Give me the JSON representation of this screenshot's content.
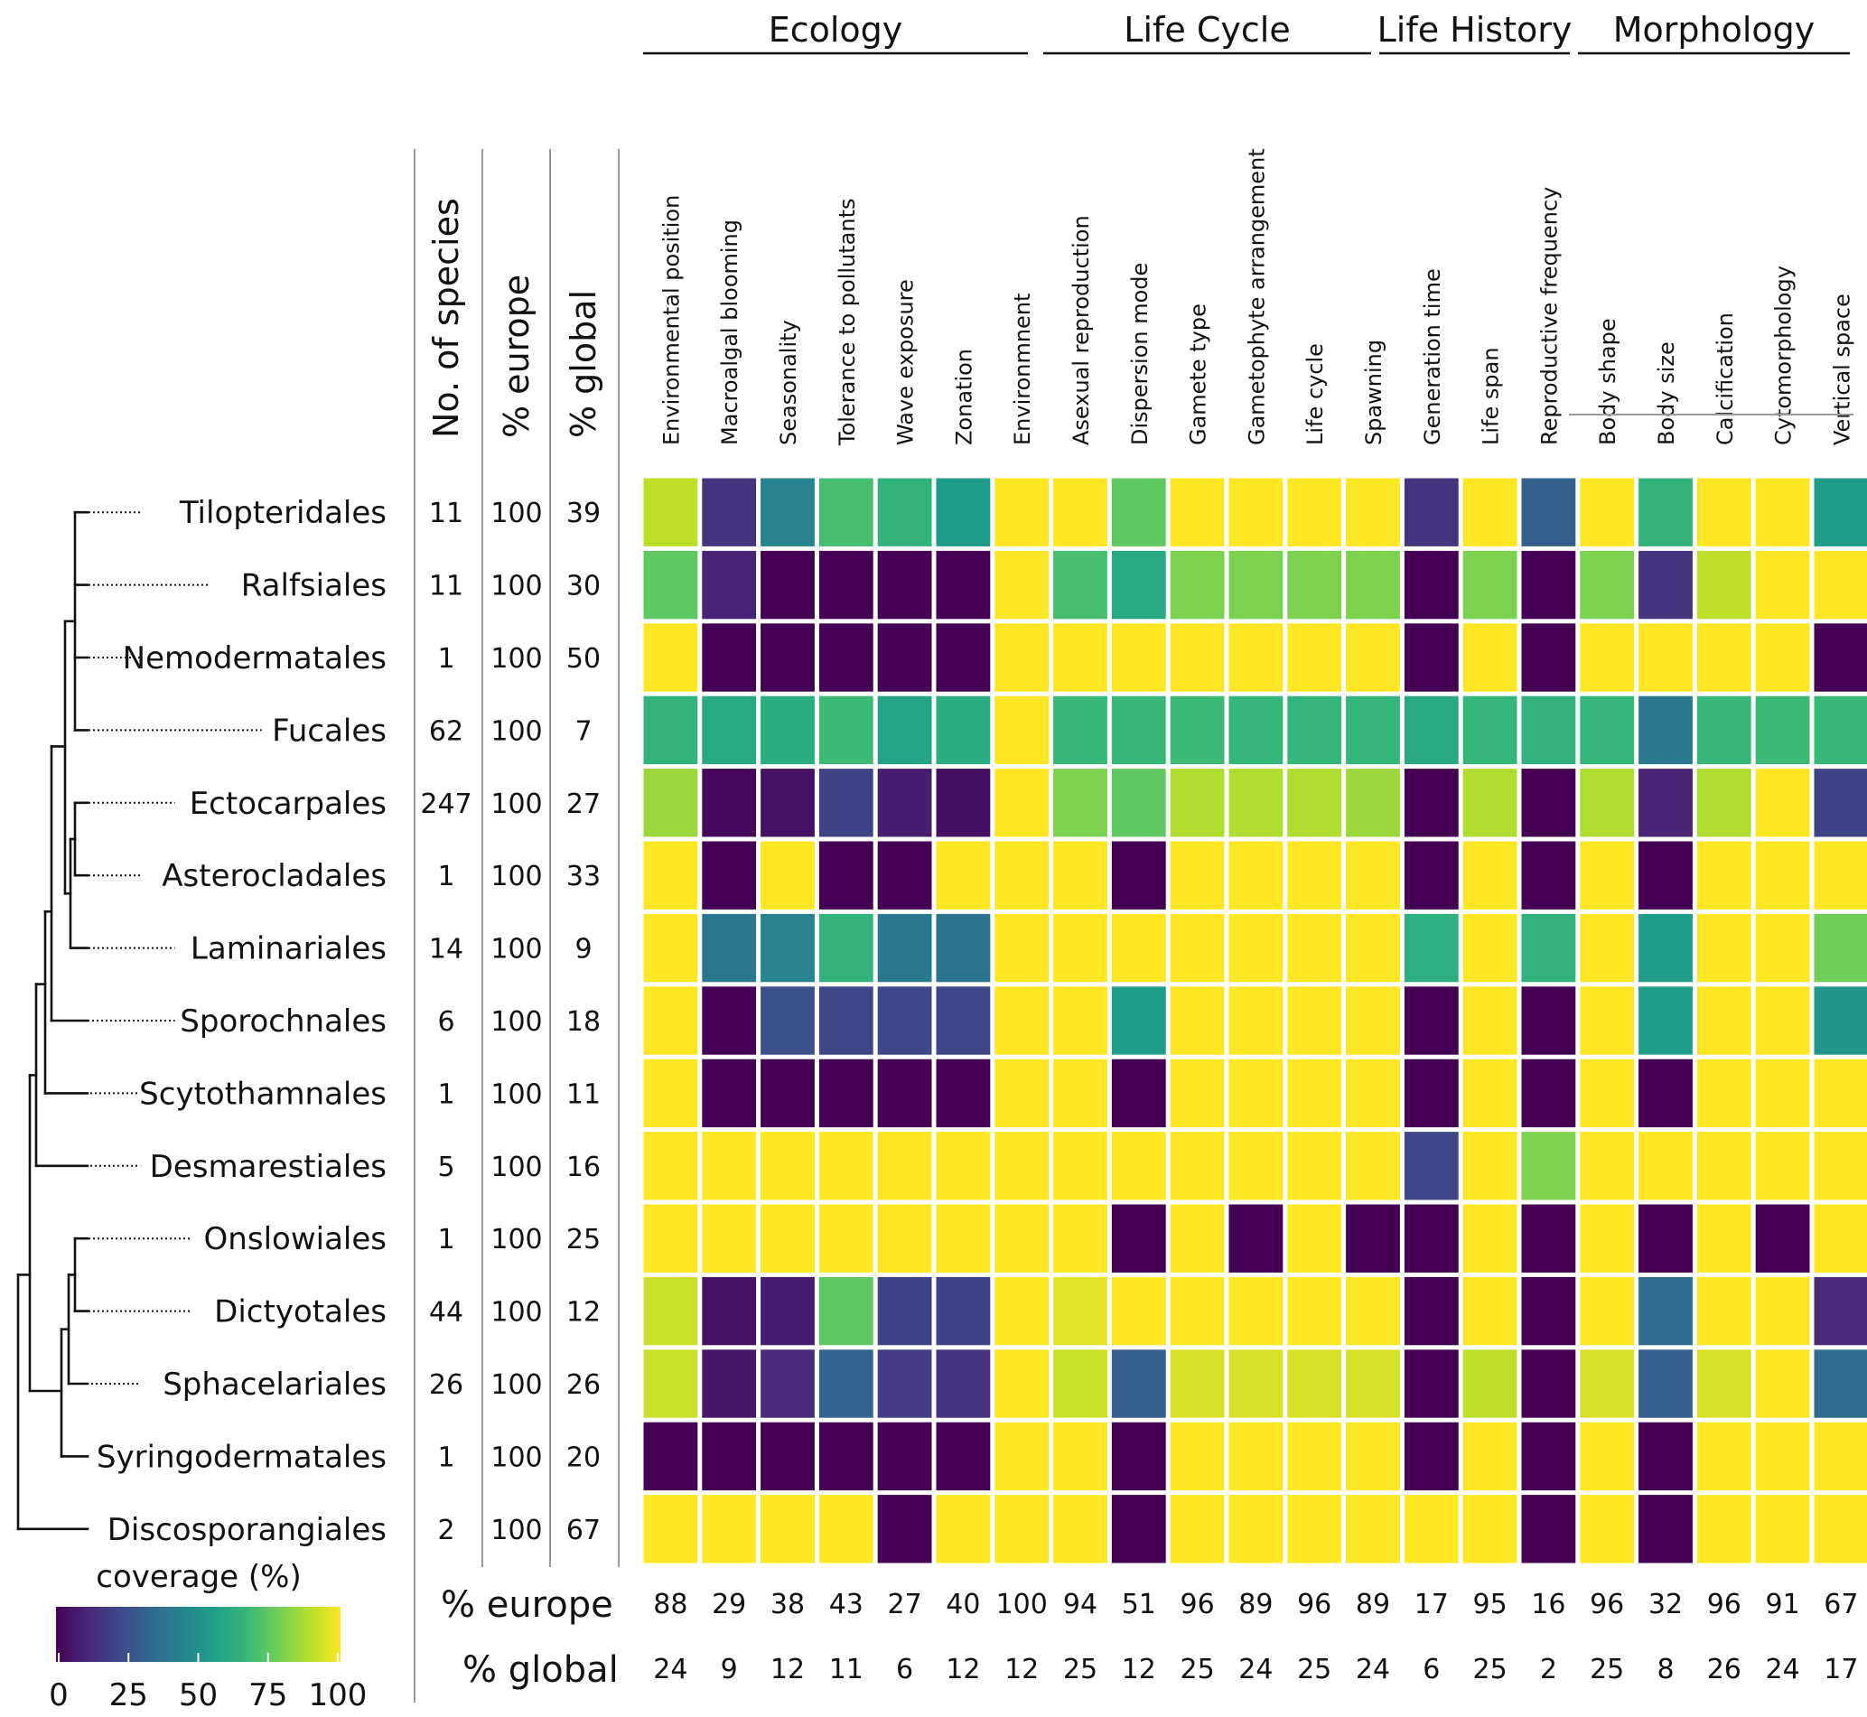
{
  "chart_data": {
    "type": "heatmap",
    "value_label": "coverage (%)",
    "color_scale": "viridis",
    "color_stops": [
      "#440154",
      "#482878",
      "#3e4989",
      "#31688e",
      "#26828e",
      "#1f9e89",
      "#35b779",
      "#6ece58",
      "#b5de2b",
      "#fde725"
    ],
    "range": [
      0,
      100
    ],
    "legend": {
      "title": "coverage (%)",
      "ticks": [
        0,
        25,
        50,
        75,
        100
      ],
      "tick_labels": [
        "0",
        "25",
        "50",
        "75",
        "100"
      ]
    },
    "groups": [
      {
        "name": "Ecology",
        "columns": [
          "Environmental position",
          "Macroalgal blooming",
          "Seasonality",
          "Tolerance to pollutants",
          "Wave exposure",
          "Zonation",
          "Environmnent"
        ]
      },
      {
        "name": "Life Cycle",
        "columns": [
          "Asexual reproduction",
          "Dispersion mode",
          "Gamete type",
          "Gametophyte arrangement",
          "Life cycle",
          "Spawning"
        ]
      },
      {
        "name": "Life History",
        "columns": [
          "Generation time",
          "Life span",
          "Reproductive frequency"
        ]
      },
      {
        "name": "Morphology",
        "columns": [
          "Body shape",
          "Body size",
          "Calcification",
          "Cytomorphology",
          "Vertical space"
        ]
      }
    ],
    "traits": [
      "Environmental position",
      "Macroalgal blooming",
      "Seasonality",
      "Tolerance to pollutants",
      "Wave exposure",
      "Zonation",
      "Environmnent",
      "Asexual reproduction",
      "Dispersion mode",
      "Gamete type",
      "Gametophyte arrangement",
      "Life cycle",
      "Spawning",
      "Generation time",
      "Life span",
      "Reproductive frequency",
      "Body shape",
      "Body size",
      "Calcification",
      "Cytomorphology",
      "Vertical space"
    ],
    "summary_headers": [
      "No. of species",
      "% europe",
      "% global"
    ],
    "orders": [
      {
        "name": "Tilopteridales",
        "species": "11",
        "europe": "100",
        "global": "39",
        "values": [
          90,
          15,
          45,
          70,
          65,
          55,
          100,
          100,
          75,
          100,
          100,
          100,
          100,
          15,
          100,
          30,
          100,
          65,
          100,
          100,
          55
        ]
      },
      {
        "name": "Ralfsiales",
        "species": "11",
        "europe": "100",
        "global": "30",
        "values": [
          75,
          10,
          0,
          0,
          0,
          0,
          100,
          70,
          60,
          80,
          80,
          80,
          80,
          0,
          80,
          0,
          80,
          15,
          90,
          100,
          100
        ]
      },
      {
        "name": "Nemodermatales",
        "species": "1",
        "europe": "100",
        "global": "50",
        "values": [
          100,
          0,
          0,
          0,
          0,
          0,
          100,
          100,
          100,
          100,
          100,
          100,
          100,
          0,
          100,
          0,
          100,
          100,
          100,
          100,
          0
        ]
      },
      {
        "name": "Fucales",
        "species": "62",
        "europe": "100",
        "global": "7",
        "values": [
          65,
          60,
          62,
          68,
          58,
          62,
          100,
          67,
          67,
          68,
          66,
          66,
          66,
          60,
          66,
          64,
          66,
          40,
          67,
          68,
          67
        ]
      },
      {
        "name": "Ectocarpales",
        "species": "247",
        "europe": "100",
        "global": "27",
        "values": [
          85,
          2,
          5,
          20,
          8,
          4,
          100,
          80,
          75,
          88,
          88,
          88,
          85,
          0,
          88,
          0,
          88,
          10,
          88,
          100,
          20
        ]
      },
      {
        "name": "Asterocladales",
        "species": "1",
        "europe": "100",
        "global": "33",
        "values": [
          100,
          0,
          100,
          0,
          0,
          100,
          100,
          100,
          0,
          100,
          100,
          100,
          100,
          0,
          100,
          0,
          100,
          0,
          100,
          100,
          100
        ]
      },
      {
        "name": "Laminariales",
        "species": "14",
        "europe": "100",
        "global": "9",
        "values": [
          100,
          40,
          45,
          65,
          40,
          38,
          100,
          100,
          100,
          100,
          100,
          100,
          100,
          63,
          100,
          64,
          100,
          55,
          100,
          100,
          78
        ]
      },
      {
        "name": "Sporochnales",
        "species": "6",
        "europe": "100",
        "global": "18",
        "values": [
          100,
          0,
          25,
          22,
          22,
          22,
          100,
          100,
          55,
          100,
          100,
          100,
          100,
          0,
          100,
          0,
          100,
          55,
          100,
          100,
          52
        ]
      },
      {
        "name": "Scytothamnales",
        "species": "1",
        "europe": "100",
        "global": "11",
        "values": [
          100,
          0,
          0,
          0,
          0,
          0,
          100,
          100,
          0,
          100,
          100,
          100,
          100,
          0,
          100,
          0,
          100,
          0,
          100,
          100,
          100
        ]
      },
      {
        "name": "Desmarestiales",
        "species": "5",
        "europe": "100",
        "global": "16",
        "values": [
          100,
          100,
          100,
          100,
          100,
          100,
          100,
          100,
          100,
          100,
          100,
          100,
          100,
          22,
          100,
          80,
          100,
          100,
          100,
          100,
          100
        ]
      },
      {
        "name": "Onslowiales",
        "species": "1",
        "europe": "100",
        "global": "25",
        "values": [
          100,
          100,
          100,
          100,
          100,
          100,
          100,
          100,
          0,
          100,
          0,
          100,
          0,
          0,
          100,
          0,
          100,
          0,
          100,
          0,
          100
        ]
      },
      {
        "name": "Dictyotales",
        "species": "44",
        "europe": "100",
        "global": "12",
        "values": [
          92,
          5,
          8,
          75,
          20,
          20,
          100,
          96,
          100,
          100,
          100,
          100,
          100,
          0,
          100,
          0,
          100,
          35,
          100,
          100,
          12
        ]
      },
      {
        "name": "Sphacelariales",
        "species": "26",
        "europe": "100",
        "global": "26",
        "values": [
          92,
          6,
          12,
          32,
          18,
          15,
          100,
          92,
          30,
          94,
          94,
          94,
          94,
          0,
          90,
          0,
          94,
          30,
          94,
          100,
          35
        ]
      },
      {
        "name": "Syringodermatales",
        "species": "1",
        "europe": "100",
        "global": "20",
        "values": [
          0,
          0,
          0,
          0,
          0,
          0,
          100,
          100,
          0,
          100,
          100,
          100,
          100,
          0,
          100,
          0,
          100,
          0,
          100,
          100,
          100
        ]
      },
      {
        "name": "Discosporangiales",
        "species": "2",
        "europe": "100",
        "global": "67",
        "values": [
          100,
          100,
          100,
          100,
          0,
          100,
          100,
          100,
          0,
          100,
          100,
          100,
          100,
          100,
          100,
          0,
          100,
          0,
          100,
          100,
          100
        ]
      }
    ],
    "footer": {
      "europe_label": "% europe",
      "global_label": "% global",
      "europe": [
        "88",
        "29",
        "38",
        "43",
        "27",
        "40",
        "100",
        "94",
        "51",
        "96",
        "89",
        "96",
        "89",
        "17",
        "95",
        "16",
        "96",
        "32",
        "96",
        "91",
        "67"
      ],
      "global": [
        "24",
        "9",
        "12",
        "11",
        "6",
        "12",
        "12",
        "25",
        "12",
        "25",
        "24",
        "25",
        "24",
        "6",
        "25",
        "2",
        "25",
        "8",
        "26",
        "24",
        "17"
      ]
    },
    "tree": {
      "description_free": true,
      "leaf_order": [
        "Tilopteridales",
        "Ralfsiales",
        "Nemodermatales",
        "Fucales",
        "Ectocarpales",
        "Asterocladales",
        "Laminariales",
        "Sporochnales",
        "Scytothamnales",
        "Desmarestiales",
        "Onslowiales",
        "Dictyotales",
        "Sphacelariales",
        "Syringodermatales",
        "Discosporangiales"
      ]
    }
  }
}
